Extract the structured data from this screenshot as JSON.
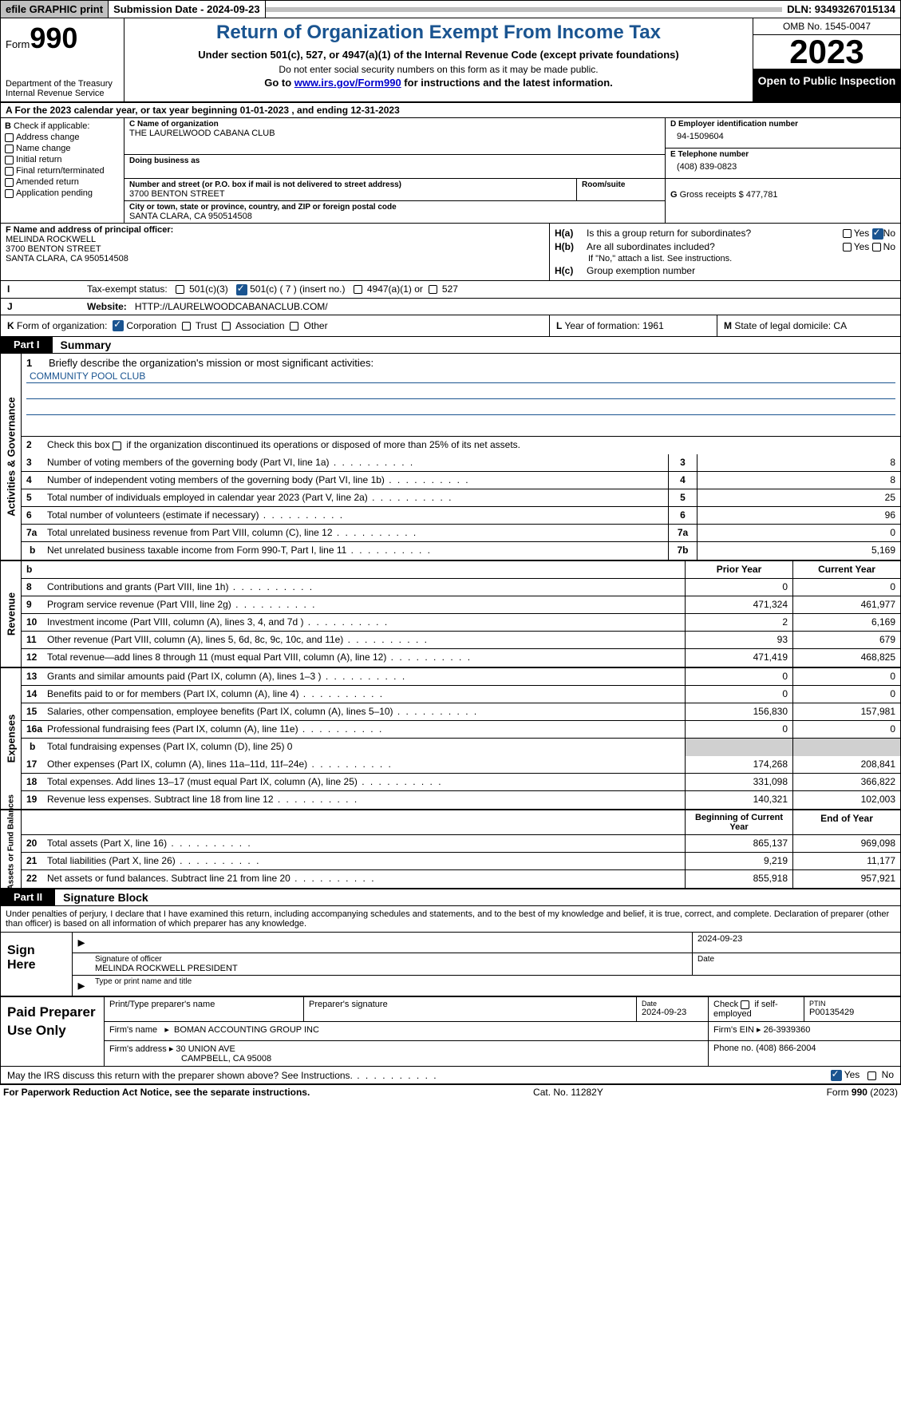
{
  "topbar": {
    "efile": "efile GRAPHIC print",
    "submission_label": "Submission Date - 2024-09-23",
    "dln_label": "DLN: 93493267015134"
  },
  "header": {
    "form_label": "Form",
    "form_num": "990",
    "dept": "Department of the Treasury Internal Revenue Service",
    "title": "Return of Organization Exempt From Income Tax",
    "sub": "Under section 501(c), 527, or 4947(a)(1) of the Internal Revenue Code (except private foundations)",
    "ssn": "Do not enter social security numbers on this form as it may be made public.",
    "goto_pre": "Go to ",
    "goto_link": "www.irs.gov/Form990",
    "goto_post": " for instructions and the latest information.",
    "omb": "OMB No. 1545-0047",
    "year": "2023",
    "open": "Open to Public Inspection"
  },
  "rowA": "A  For the 2023 calendar year, or tax year beginning 01-01-2023    , and ending 12-31-2023",
  "colB": {
    "lead": "B",
    "check": "Check if applicable:",
    "opts": [
      "Address change",
      "Name change",
      "Initial return",
      "Final return/terminated",
      "Amended return",
      "Application pending"
    ]
  },
  "colC": {
    "name_lbl": "C Name of organization",
    "name": "THE LAURELWOOD CABANA CLUB",
    "dba_lbl": "Doing business as",
    "dba": "",
    "street_lbl": "Number and street (or P.O. box if mail is not delivered to street address)",
    "street": "3700 BENTON STREET",
    "room_lbl": "Room/suite",
    "city_lbl": "City or town, state or province, country, and ZIP or foreign postal code",
    "city": "SANTA CLARA, CA  950514508"
  },
  "colD": {
    "lbl": "D Employer identification number",
    "val": "94-1509604"
  },
  "colE": {
    "lbl": "E Telephone number",
    "val": "(408) 839-0823"
  },
  "colG": {
    "lbl": "G",
    "txt": "Gross receipts $ 477,781"
  },
  "f": {
    "lbl": "F  Name and address of principal officer:",
    "line1": "MELINDA ROCKWELL",
    "line2": "3700 BENTON STREET",
    "line3": "SANTA CLARA, CA  950514508"
  },
  "h": {
    "a_lbl": "H(a)",
    "a_txt": "Is this a group return for subordinates?",
    "b_lbl": "H(b)",
    "b_txt": "Are all subordinates included?",
    "b_note": "If \"No,\" attach a list. See instructions.",
    "c_lbl": "H(c)",
    "c_txt": "Group exemption number",
    "yes": "Yes",
    "no": "No"
  },
  "i": {
    "lbl": "I",
    "txt": "Tax-exempt status:",
    "o1": "501(c)(3)",
    "o2": "501(c) ( 7 ) (insert no.)",
    "o3": "4947(a)(1) or",
    "o4": "527"
  },
  "j": {
    "lbl": "J",
    "txt": "Website:",
    "val": "HTTP://LAURELWOODCABANACLUB.COM/"
  },
  "k": {
    "lbl": "K",
    "txt": "Form of organization:",
    "o1": "Corporation",
    "o2": "Trust",
    "o3": "Association",
    "o4": "Other",
    "l_lbl": "L",
    "l_txt": "Year of formation: 1961",
    "m_lbl": "M",
    "m_txt": "State of legal domicile: CA"
  },
  "part1": {
    "tab": "Part I",
    "title": "Summary"
  },
  "p1": {
    "l1_lbl": "1",
    "l1_txt": "Briefly describe the organization's mission or most significant activities:",
    "l1_val": "COMMUNITY POOL CLUB",
    "l2_lbl": "2",
    "l2_txt": "Check this box          if the organization discontinued its operations or disposed of more than 25% of its net assets.",
    "govhdr": "Activities & Governance",
    "rows_gov": [
      {
        "n": "3",
        "d": "Number of voting members of the governing body (Part VI, line 1a)",
        "box": "3",
        "v": "8"
      },
      {
        "n": "4",
        "d": "Number of independent voting members of the governing body (Part VI, line 1b)",
        "box": "4",
        "v": "8"
      },
      {
        "n": "5",
        "d": "Total number of individuals employed in calendar year 2023 (Part V, line 2a)",
        "box": "5",
        "v": "25"
      },
      {
        "n": "6",
        "d": "Total number of volunteers (estimate if necessary)",
        "box": "6",
        "v": "96"
      },
      {
        "n": "7a",
        "d": "Total unrelated business revenue from Part VIII, column (C), line 12",
        "box": "7a",
        "v": "0"
      },
      {
        "n": "b",
        "d": "Net unrelated business taxable income from Form 990-T, Part I, line 11",
        "box": "7b",
        "v": "5,169",
        "sub": true
      }
    ],
    "revhdr": "Revenue",
    "col_prior": "Prior Year",
    "col_curr": "Current Year",
    "rows_rev": [
      {
        "n": "8",
        "d": "Contributions and grants (Part VIII, line 1h)",
        "p": "0",
        "c": "0"
      },
      {
        "n": "9",
        "d": "Program service revenue (Part VIII, line 2g)",
        "p": "471,324",
        "c": "461,977"
      },
      {
        "n": "10",
        "d": "Investment income (Part VIII, column (A), lines 3, 4, and 7d )",
        "p": "2",
        "c": "6,169"
      },
      {
        "n": "11",
        "d": "Other revenue (Part VIII, column (A), lines 5, 6d, 8c, 9c, 10c, and 11e)",
        "p": "93",
        "c": "679"
      },
      {
        "n": "12",
        "d": "Total revenue—add lines 8 through 11 (must equal Part VIII, column (A), line 12)",
        "p": "471,419",
        "c": "468,825"
      }
    ],
    "exphdr": "Expenses",
    "rows_exp": [
      {
        "n": "13",
        "d": "Grants and similar amounts paid (Part IX, column (A), lines 1–3 )",
        "p": "0",
        "c": "0"
      },
      {
        "n": "14",
        "d": "Benefits paid to or for members (Part IX, column (A), line 4)",
        "p": "0",
        "c": "0"
      },
      {
        "n": "15",
        "d": "Salaries, other compensation, employee benefits (Part IX, column (A), lines 5–10)",
        "p": "156,830",
        "c": "157,981"
      },
      {
        "n": "16a",
        "d": "Professional fundraising fees (Part IX, column (A), line 11e)",
        "p": "0",
        "c": "0"
      },
      {
        "n": "b",
        "d": "Total fundraising expenses (Part IX, column (D), line 25) 0",
        "p": "",
        "c": "",
        "gray": true,
        "sub": true,
        "nob": true
      },
      {
        "n": "17",
        "d": "Other expenses (Part IX, column (A), lines 11a–11d, 11f–24e)",
        "p": "174,268",
        "c": "208,841"
      },
      {
        "n": "18",
        "d": "Total expenses. Add lines 13–17 (must equal Part IX, column (A), line 25)",
        "p": "331,098",
        "c": "366,822"
      },
      {
        "n": "19",
        "d": "Revenue less expenses. Subtract line 18 from line 12",
        "p": "140,321",
        "c": "102,003"
      }
    ],
    "nethdr": "Net Assets or Fund Balances",
    "col_bgn": "Beginning of Current Year",
    "col_end": "End of Year",
    "rows_net": [
      {
        "n": "20",
        "d": "Total assets (Part X, line 16)",
        "p": "865,137",
        "c": "969,098"
      },
      {
        "n": "21",
        "d": "Total liabilities (Part X, line 26)",
        "p": "9,219",
        "c": "11,177"
      },
      {
        "n": "22",
        "d": "Net assets or fund balances. Subtract line 21 from line 20",
        "p": "855,918",
        "c": "957,921"
      }
    ]
  },
  "part2": {
    "tab": "Part II",
    "title": "Signature Block"
  },
  "sig_intro": "Under penalties of perjury, I declare that I have examined this return, including accompanying schedules and statements, and to the best of my knowledge and belief, it is true, correct, and complete. Declaration of preparer (other than officer) is based on all information of which preparer has any knowledge.",
  "sign": {
    "here": "Sign Here",
    "sig_lbl": "Signature of officer",
    "date_lbl": "Date",
    "date": "2024-09-23",
    "name": "MELINDA ROCKWELL  PRESIDENT",
    "name_lbl": "Type or print name and title"
  },
  "paid": {
    "hdr": "Paid Preparer Use Only",
    "c1": "Print/Type preparer's name",
    "c2": "Preparer's signature",
    "c3_lbl": "Date",
    "c3": "2024-09-23",
    "c4_lbl": "Check",
    "c4_txt": "if self-employed",
    "c5_lbl": "PTIN",
    "c5": "P00135429",
    "firm_lbl": "Firm's name",
    "firm": "BOMAN ACCOUNTING GROUP INC",
    "ein_lbl": "Firm's EIN",
    "ein": "26-3939360",
    "addr_lbl": "Firm's address",
    "addr1": "30 UNION AVE",
    "addr2": "CAMPBELL, CA  95008",
    "phone_lbl": "Phone no.",
    "phone": "(408) 866-2004"
  },
  "may": {
    "txt": "May the IRS discuss this return with the preparer shown above? See Instructions.",
    "yes": "Yes",
    "no": "No"
  },
  "footer": {
    "left": "For Paperwork Reduction Act Notice, see the separate instructions.",
    "mid": "Cat. No. 11282Y",
    "right_pre": "Form ",
    "right_bold": "990",
    "right_post": " (2023)"
  },
  "colors": {
    "accent": "#1a5490",
    "link": "#0000cc",
    "gray": "#c0c0c0"
  }
}
